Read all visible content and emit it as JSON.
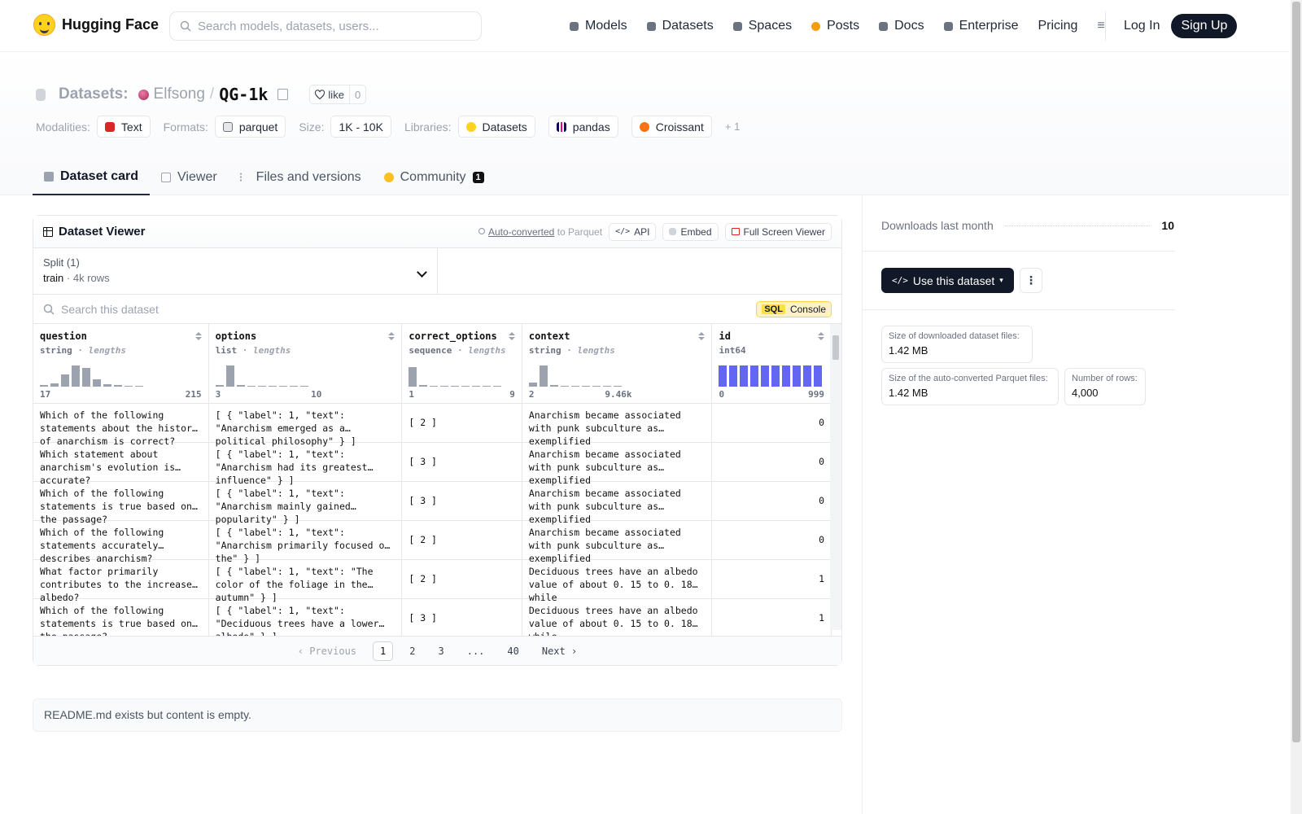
{
  "nav": {
    "brand": "Hugging Face",
    "search_placeholder": "Search models, datasets, users...",
    "links": [
      {
        "label": "Models",
        "icon": "cube-icon",
        "color": "#6b7280"
      },
      {
        "label": "Datasets",
        "icon": "database-icon",
        "color": "#6b7280"
      },
      {
        "label": "Spaces",
        "icon": "grid-icon",
        "color": "#6b7280"
      },
      {
        "label": "Posts",
        "icon": "speech-icon",
        "color": "#f59e0b"
      },
      {
        "label": "Docs",
        "icon": "doc-icon",
        "color": "#6b7280"
      },
      {
        "label": "Enterprise",
        "icon": "enterprise-icon",
        "color": "#6b7280"
      },
      {
        "label": "Pricing",
        "icon": "",
        "color": ""
      }
    ],
    "login": "Log In",
    "signup": "Sign Up"
  },
  "header": {
    "section": "Datasets:",
    "owner": "Elfsong",
    "slash": "/",
    "name": "QG-1k",
    "like_label": "like",
    "like_count": "0",
    "modalities_label": "Modalities:",
    "modality": "Text",
    "formats_label": "Formats:",
    "format": "parquet",
    "size_label": "Size:",
    "size": "1K - 10K",
    "libraries_label": "Libraries:",
    "libraries": [
      "Datasets",
      "pandas",
      "Croissant"
    ],
    "more_libraries": "+ 1"
  },
  "tabs": [
    {
      "label": "Dataset card",
      "active": true
    },
    {
      "label": "Viewer",
      "active": false
    },
    {
      "label": "Files and versions",
      "active": false
    },
    {
      "label": "Community",
      "active": false,
      "badge": "1"
    }
  ],
  "viewer": {
    "title": "Dataset Viewer",
    "auto_converted": "Auto-converted",
    "to_parquet": "to Parquet",
    "api": "API",
    "embed": "Embed",
    "fullscreen": "Full Screen Viewer",
    "split_label": "Split (1)",
    "split_name": "train",
    "split_rows": "4k rows",
    "search_placeholder": "Search this dataset",
    "sql_badge": "SQL",
    "sql_label": "Console",
    "columns": [
      {
        "name": "question",
        "type": "string",
        "stat": "lengths",
        "min": "17",
        "max": "215",
        "hist": [
          0.05,
          0.12,
          0.5,
          0.85,
          0.75,
          0.3,
          0.1,
          0.05,
          0.03,
          0.02
        ]
      },
      {
        "name": "options",
        "type": "list",
        "stat": "lengths",
        "min": "3",
        "max": "10",
        "hist": [
          0.05,
          0.85,
          0.08,
          0.03,
          0.03,
          0.02,
          0.02,
          0.0,
          0.02
        ]
      },
      {
        "name": "correct_options",
        "type": "sequence",
        "stat": "lengths",
        "min": "1",
        "max": "9",
        "hist": [
          0.8,
          0.06,
          0.03,
          0.02,
          0.02,
          0.02,
          0.0,
          0.0,
          0.02
        ]
      },
      {
        "name": "context",
        "type": "string",
        "stat": "lengths",
        "min": "2",
        "max": "9.46k",
        "hist": [
          0.15,
          0.85,
          0.05,
          0.02,
          0.0,
          0.0,
          0.0,
          0.0,
          0.02
        ]
      },
      {
        "name": "id",
        "type": "int64",
        "stat": "",
        "min": "0",
        "max": "999",
        "hist": [
          0.85,
          0.85,
          0.85,
          0.85,
          0.85,
          0.85,
          0.85,
          0.85,
          0.85,
          0.85
        ]
      }
    ],
    "rows": [
      {
        "question": "Which of the following statements about the history of anarchism is correct?",
        "options": "[ { \"label\": 1, \"text\": \"Anarchism emerged as a political philosophy\" } ]",
        "correct_options": "[ 2 ]",
        "context": "Anarchism became associated with punk subculture as exemplified",
        "id": "0"
      },
      {
        "question": "Which statement about anarchism's evolution is accurate?",
        "options": "[ { \"label\": 1, \"text\": \"Anarchism had its greatest influence\" } ]",
        "correct_options": "[ 3 ]",
        "context": "Anarchism became associated with punk subculture as exemplified",
        "id": "0"
      },
      {
        "question": "Which of the following statements is true based on the passage?",
        "options": "[ { \"label\": 1, \"text\": \"Anarchism mainly gained popularity\" } ]",
        "correct_options": "[ 3 ]",
        "context": "Anarchism became associated with punk subculture as exemplified",
        "id": "0"
      },
      {
        "question": "Which of the following statements accurately describes anarchism?",
        "options": "[ { \"label\": 1, \"text\": \"Anarchism primarily focused on the\" } ]",
        "correct_options": "[ 2 ]",
        "context": "Anarchism became associated with punk subculture as exemplified",
        "id": "0"
      },
      {
        "question": "What factor primarily contributes to the increased albedo?",
        "options": "[ { \"label\": 1, \"text\": \"The color of the foliage in the autumn\" } ]",
        "correct_options": "[ 2 ]",
        "context": "Deciduous trees have an albedo value of about 0. 15 to 0. 18 while",
        "id": "1"
      },
      {
        "question": "Which of the following statements is true based on the passage?",
        "options": "[ { \"label\": 1, \"text\": \"Deciduous trees have a lower albedo\" } ]",
        "correct_options": "[ 3 ]",
        "context": "Deciduous trees have an albedo value of about 0. 15 to 0. 18 while",
        "id": "1"
      }
    ],
    "pager": {
      "prev": "Previous",
      "pages": [
        "1",
        "2",
        "3",
        "...",
        "40"
      ],
      "next": "Next",
      "current": "1"
    }
  },
  "readme": "README.md exists but content is empty.",
  "sidebar": {
    "downloads_label": "Downloads last month",
    "downloads_value": "10",
    "use_button": "Use this dataset",
    "stats": [
      {
        "label": "Size of downloaded dataset files:",
        "value": "1.42 MB"
      },
      {
        "label": "Size of the auto-converted Parquet files:",
        "value": "1.42 MB"
      },
      {
        "label": "Number of rows:",
        "value": "4,000"
      }
    ]
  }
}
